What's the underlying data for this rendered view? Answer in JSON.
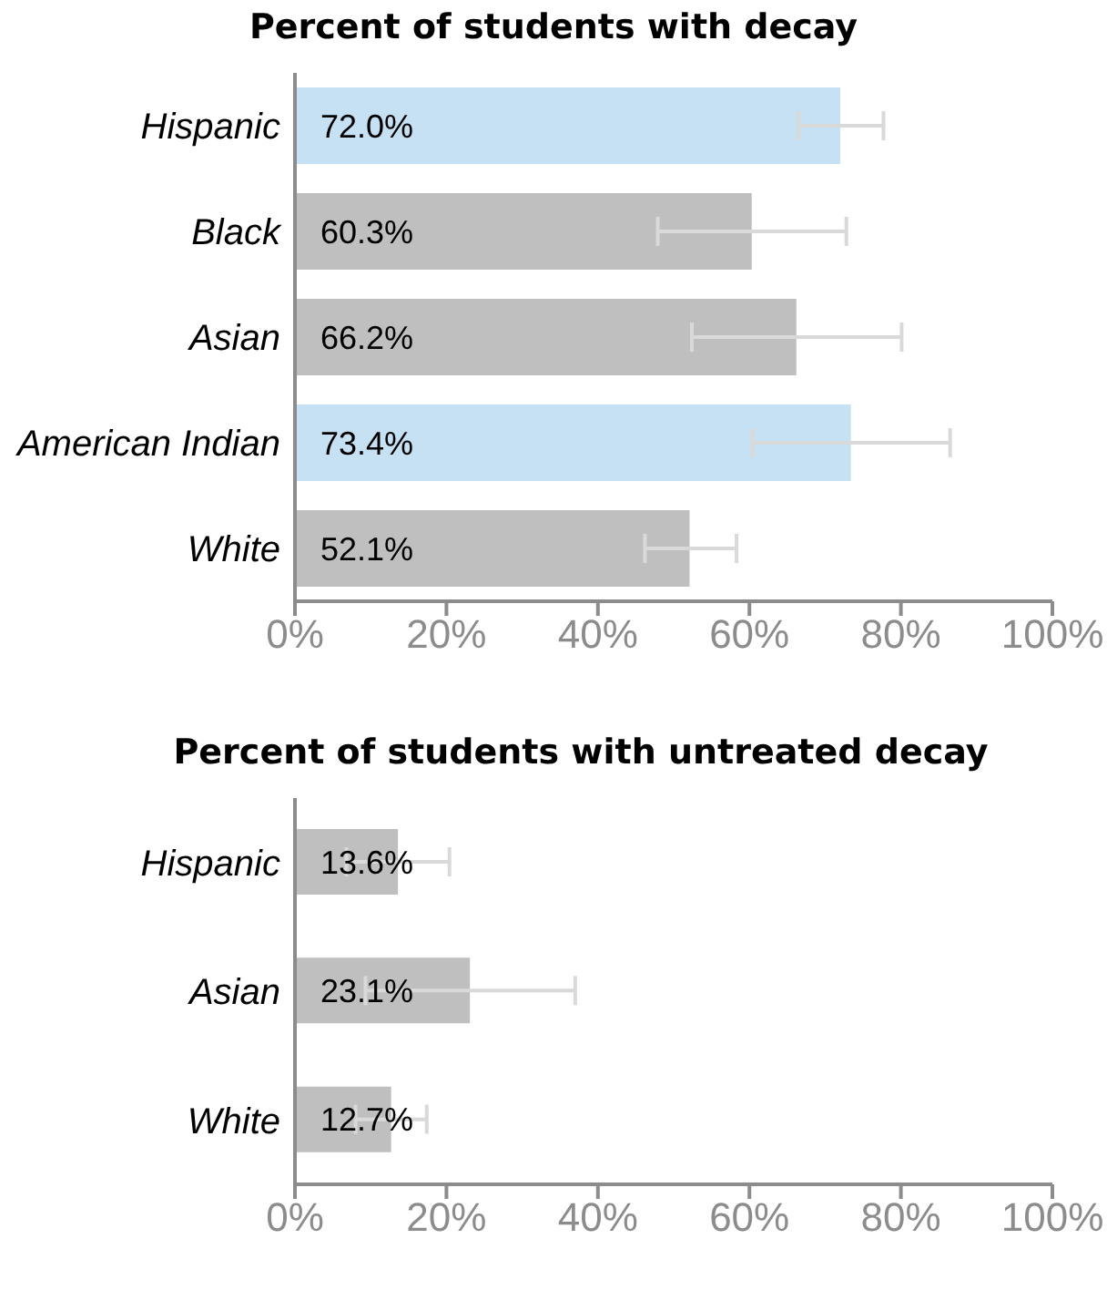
{
  "chart_data": [
    {
      "type": "bar",
      "orientation": "horizontal",
      "title": "Percent of students with decay",
      "categories": [
        "Hispanic",
        "Black",
        "Asian",
        "American Indian",
        "White"
      ],
      "values": [
        72.0,
        60.3,
        66.2,
        73.4,
        52.1
      ],
      "colors": [
        "#c6e0f4",
        "#bfbfbf",
        "#bfbfbf",
        "#c6e0f4",
        "#bfbfbf"
      ],
      "value_labels": [
        "72.0%",
        "60.3%",
        "66.2%",
        "73.4%",
        "52.1%"
      ],
      "errors": [
        [
          66.5,
          77.7
        ],
        [
          47.9,
          72.8
        ],
        [
          52.4,
          80.1
        ],
        [
          60.4,
          86.5
        ],
        [
          46.2,
          58.3
        ]
      ],
      "xlim": [
        0,
        100
      ],
      "xticks": [
        {
          "value": 0,
          "label": "0%"
        },
        {
          "value": 20,
          "label": "20%"
        },
        {
          "value": 40,
          "label": "40%"
        },
        {
          "value": 60,
          "label": "60%"
        },
        {
          "value": 80,
          "label": "80%"
        },
        {
          "value": 100,
          "label": "100%"
        }
      ],
      "grid": false,
      "legend": false
    },
    {
      "type": "bar",
      "orientation": "horizontal",
      "title": "Percent of students with untreated decay",
      "categories": [
        "Hispanic",
        "Asian",
        "White"
      ],
      "values": [
        13.6,
        23.1,
        12.7
      ],
      "colors": [
        "#bfbfbf",
        "#bfbfbf",
        "#bfbfbf"
      ],
      "value_labels": [
        "13.6%",
        "23.1%",
        "12.7%"
      ],
      "errors": [
        [
          6.8,
          20.4
        ],
        [
          9.3,
          37.0
        ],
        [
          8.0,
          17.4
        ]
      ],
      "xlim": [
        0,
        100
      ],
      "xticks": [
        {
          "value": 0,
          "label": "0%"
        },
        {
          "value": 20,
          "label": "20%"
        },
        {
          "value": 40,
          "label": "40%"
        },
        {
          "value": 60,
          "label": "60%"
        },
        {
          "value": 80,
          "label": "80%"
        },
        {
          "value": 100,
          "label": "100%"
        }
      ],
      "grid": false,
      "legend": false
    }
  ]
}
